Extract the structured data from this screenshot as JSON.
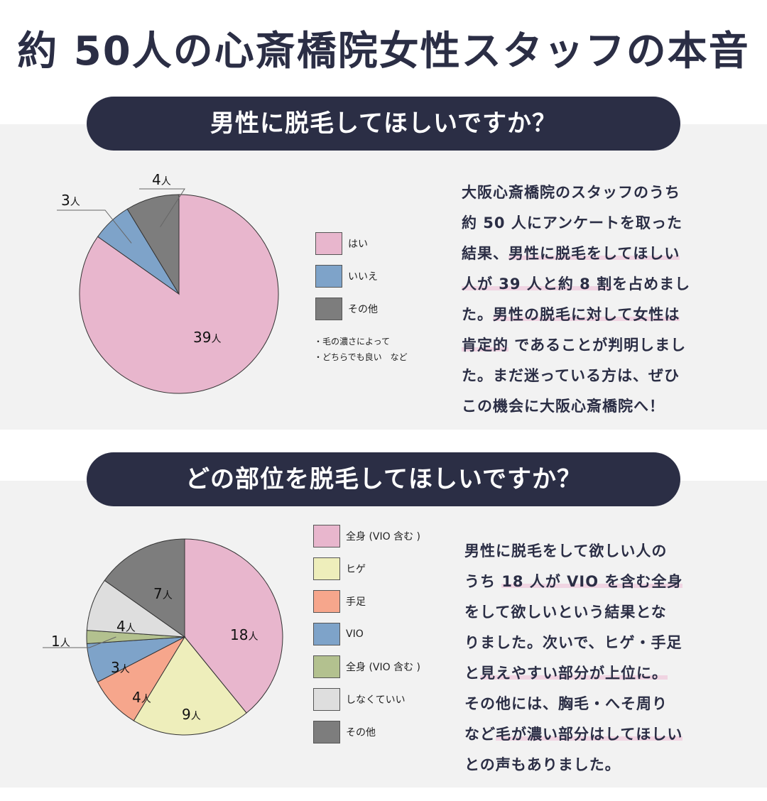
{
  "title": "約 50人の心斎橋院女性スタッフの本音",
  "sections": [
    {
      "heading": "男性に脱毛してほしいですか？",
      "legend": [
        {
          "label": "はい",
          "color": "#e8b6cd"
        },
        {
          "label": "いいえ",
          "color": "#7ea3c9"
        },
        {
          "label": "その他",
          "color": "#7d7d7d"
        }
      ],
      "notes": [
        "・毛の濃さによって",
        "・どちらでも良い　など"
      ],
      "paragraph": [
        [
          {
            "t": "大阪心斎橋院のスタッフのうち",
            "hl": false
          }
        ],
        [
          {
            "t": "約 50 人にアンケートを取った",
            "hl": false
          }
        ],
        [
          {
            "t": "結果、",
            "hl": false
          },
          {
            "t": "男性に脱毛をしてほしい",
            "hl": true
          }
        ],
        [
          {
            "t": "人が 39 人と約 8 割",
            "hl": true
          },
          {
            "t": "を占めまし",
            "hl": false
          }
        ],
        [
          {
            "t": "た。",
            "hl": false
          },
          {
            "t": "男性の脱毛に対して女性は",
            "hl": true
          }
        ],
        [
          {
            "t": "肯定的",
            "hl": true
          },
          {
            "t": " であることが判明しまし",
            "hl": false
          }
        ],
        [
          {
            "t": "た。まだ迷っている方は、ぜひ",
            "hl": false
          }
        ],
        [
          {
            "t": "この機会に大阪心斎橋院へ！",
            "hl": false
          }
        ]
      ]
    },
    {
      "heading": "どの部位を脱毛してほしいですか？",
      "legend": [
        {
          "label": "全身 (VIO 含む )",
          "color": "#e8b6cd"
        },
        {
          "label": "ヒゲ",
          "color": "#eeeebb"
        },
        {
          "label": "手足",
          "color": "#f6a68c"
        },
        {
          "label": "VIO",
          "color": "#7ea3c9"
        },
        {
          "label": "全身 (VIO 含む )",
          "color": "#b3c18f"
        },
        {
          "label": "しなくていい",
          "color": "#dedede"
        },
        {
          "label": "その他",
          "color": "#7d7d7d"
        }
      ],
      "paragraph": [
        [
          {
            "t": "男性に脱毛をして欲しい人の",
            "hl": false
          }
        ],
        [
          {
            "t": "うち ",
            "hl": false
          },
          {
            "t": "18 人が VIO を含む全身",
            "hl": true
          }
        ],
        [
          {
            "t": "をして欲しいという結果とな",
            "hl": false
          }
        ],
        [
          {
            "t": "りました。次いで、ヒゲ・手足",
            "hl": false
          }
        ],
        [
          {
            "t": "と",
            "hl": false
          },
          {
            "t": "見えやすい部分が上位に。",
            "hl": true
          }
        ],
        [
          {
            "t": "その他には、胸毛・へそ周り",
            "hl": false
          }
        ],
        [
          {
            "t": "など",
            "hl": false
          },
          {
            "t": "毛が濃い部分はしてほしい",
            "hl": true
          }
        ],
        [
          {
            "t": "との声もありました。",
            "hl": false
          }
        ]
      ]
    }
  ],
  "chart_data": [
    {
      "type": "pie",
      "title": "男性に脱毛してほしいですか？",
      "unit": "人",
      "slices": [
        {
          "label": "はい",
          "value": 39,
          "color": "#e8b6cd"
        },
        {
          "label": "いいえ",
          "value": 3,
          "color": "#7ea3c9"
        },
        {
          "label": "その他",
          "value": 4,
          "color": "#7d7d7d"
        }
      ]
    },
    {
      "type": "pie",
      "title": "どの部位を脱毛してほしいですか？",
      "unit": "人",
      "slices": [
        {
          "label": "全身 (VIO 含む )",
          "value": 18,
          "color": "#e8b6cd"
        },
        {
          "label": "ヒゲ",
          "value": 9,
          "color": "#eeeebb"
        },
        {
          "label": "手足",
          "value": 4,
          "color": "#f6a68c"
        },
        {
          "label": "VIO",
          "value": 3,
          "color": "#7ea3c9"
        },
        {
          "label": "全身 (VIO 含む )",
          "value": 1,
          "color": "#b3c18f"
        },
        {
          "label": "しなくていい",
          "value": 4,
          "color": "#dedede"
        },
        {
          "label": "その他",
          "value": 7,
          "color": "#7d7d7d"
        }
      ]
    }
  ]
}
